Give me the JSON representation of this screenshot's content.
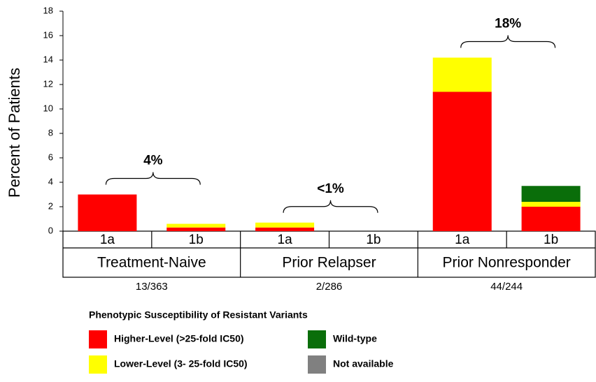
{
  "chart_data": {
    "type": "stacked_bar",
    "y_label": "Percent of Patients",
    "categories": [
      "1a",
      "1b",
      "1a",
      "1b",
      "1a",
      "1b"
    ],
    "groups": [
      "Treatment-Naive",
      "Prior Relapser",
      "Prior Nonresponder"
    ],
    "group_counts": [
      "13/363",
      "2/286",
      "44/244"
    ],
    "annotations": [
      "4%",
      "<1%",
      "18%"
    ],
    "legend_title": "Phenotypic Susceptibility of  Resistant Variants",
    "series": [
      {
        "name": "Higher-Level (>25-fold IC50)",
        "color": "#ff0000",
        "values": [
          3.0,
          0.3,
          0.3,
          0,
          11.4,
          2.0
        ]
      },
      {
        "name": "Lower-Level (3- 25-fold IC50)",
        "color": "#ffff00",
        "values": [
          0,
          0.3,
          0.4,
          0,
          2.8,
          0.4
        ]
      },
      {
        "name": "Wild-type",
        "color": "#0a6e0a",
        "values": [
          0,
          0,
          0,
          0,
          0,
          1.3
        ]
      },
      {
        "name": "Not available",
        "color": "#808080",
        "values": [
          0,
          0,
          0,
          0,
          0,
          0
        ]
      }
    ],
    "ylim": [
      0,
      18
    ],
    "yticks": [
      0,
      2,
      4,
      6,
      8,
      10,
      12,
      14,
      16,
      18
    ]
  }
}
